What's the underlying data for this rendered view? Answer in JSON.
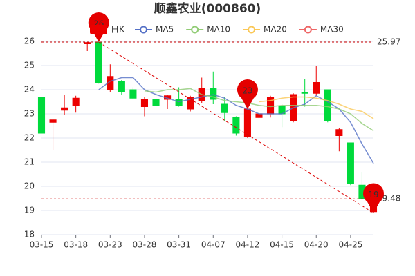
{
  "chart_data": {
    "type": "candlestick",
    "title": "顺鑫农业(000860)",
    "categories": [
      "03-15",
      null,
      null,
      "03-18",
      null,
      null,
      "03-23",
      null,
      null,
      "03-28",
      null,
      null,
      "03-31",
      null,
      null,
      "04-07",
      null,
      null,
      "04-12",
      null,
      null,
      "04-15",
      null,
      null,
      "04-20",
      null,
      null,
      "04-25",
      null,
      null
    ],
    "candles": {
      "name": "日K",
      "up_color": "#ec0000",
      "down_color": "#00da3c",
      "open": [
        23.7,
        22.65,
        23.15,
        23.35,
        25.9,
        25.97,
        24.0,
        24.35,
        24.0,
        23.3,
        23.6,
        23.6,
        23.6,
        23.2,
        23.55,
        24.05,
        23.4,
        22.85,
        22.05,
        22.85,
        23.0,
        23.3,
        22.7,
        23.9,
        23.85,
        24.0,
        22.1,
        21.8,
        20.05,
        18.95
      ],
      "close": [
        22.2,
        22.75,
        23.25,
        23.65,
        25.95,
        24.3,
        24.55,
        23.9,
        23.65,
        23.6,
        23.35,
        23.75,
        23.35,
        23.7,
        24.05,
        23.6,
        23.05,
        22.2,
        23.2,
        23.0,
        23.7,
        23.0,
        23.8,
        23.85,
        24.3,
        22.7,
        22.35,
        20.1,
        19.5,
        19.4
      ],
      "high": [
        23.7,
        22.8,
        23.8,
        23.75,
        25.97,
        25.97,
        25.05,
        24.4,
        24.1,
        23.7,
        23.9,
        23.8,
        24.1,
        23.75,
        24.5,
        24.75,
        23.7,
        22.9,
        23.25,
        23.05,
        23.75,
        23.4,
        23.85,
        24.45,
        25.0,
        24.0,
        22.4,
        21.8,
        20.6,
        19.45
      ],
      "low": [
        22.2,
        21.5,
        22.95,
        23.05,
        25.6,
        24.25,
        23.9,
        23.8,
        23.6,
        22.9,
        23.3,
        23.2,
        23.3,
        23.1,
        23.45,
        23.4,
        22.7,
        22.1,
        22.0,
        22.8,
        22.85,
        22.45,
        22.65,
        23.3,
        23.75,
        22.65,
        21.45,
        20.05,
        19.45,
        18.9
      ]
    },
    "series": [
      {
        "name": "MA5",
        "color": "#5470c6",
        "values": [
          null,
          null,
          null,
          null,
          null,
          24.0,
          24.35,
          24.5,
          24.5,
          24.0,
          23.8,
          23.65,
          23.5,
          23.6,
          23.7,
          23.8,
          23.65,
          23.35,
          23.2,
          23.0,
          23.0,
          23.0,
          23.25,
          23.4,
          23.75,
          23.5,
          23.2,
          22.65,
          21.75,
          20.95
        ]
      },
      {
        "name": "MA10",
        "color": "#91cc75",
        "values": [
          null,
          null,
          null,
          null,
          null,
          null,
          null,
          null,
          null,
          23.95,
          23.9,
          24.0,
          24.0,
          24.05,
          23.8,
          23.7,
          23.55,
          23.5,
          23.45,
          23.35,
          23.3,
          23.35,
          23.35,
          23.35,
          23.35,
          23.3,
          23.2,
          23.0,
          22.6,
          22.3
        ]
      },
      {
        "name": "MA20",
        "color": "#fac858",
        "values": [
          null,
          null,
          null,
          null,
          null,
          null,
          null,
          null,
          null,
          null,
          null,
          null,
          null,
          null,
          null,
          null,
          null,
          null,
          null,
          23.5,
          23.55,
          23.65,
          23.7,
          23.7,
          23.65,
          23.55,
          23.4,
          23.2,
          23.1,
          22.8
        ]
      },
      {
        "name": "MA30",
        "color": "#ee6666",
        "values": [
          null,
          null,
          null,
          null,
          null,
          null,
          null,
          null,
          null,
          null,
          null,
          null,
          null,
          null,
          null,
          null,
          null,
          null,
          null,
          null,
          null,
          null,
          null,
          null,
          null,
          null,
          null,
          null,
          null,
          null
        ]
      }
    ],
    "ylim": [
      18,
      26
    ],
    "yticks": [
      18,
      19,
      20,
      21,
      22,
      23,
      24,
      25,
      26
    ],
    "grid": true,
    "mark_lines": [
      25.97,
      19.48
    ],
    "mark_points": [
      {
        "index": 5,
        "value": 25.97,
        "label": "26"
      },
      {
        "index": 18,
        "value": 23.2,
        "label": "23"
      },
      {
        "index": 29,
        "value": 18.9,
        "label": "19"
      }
    ]
  }
}
